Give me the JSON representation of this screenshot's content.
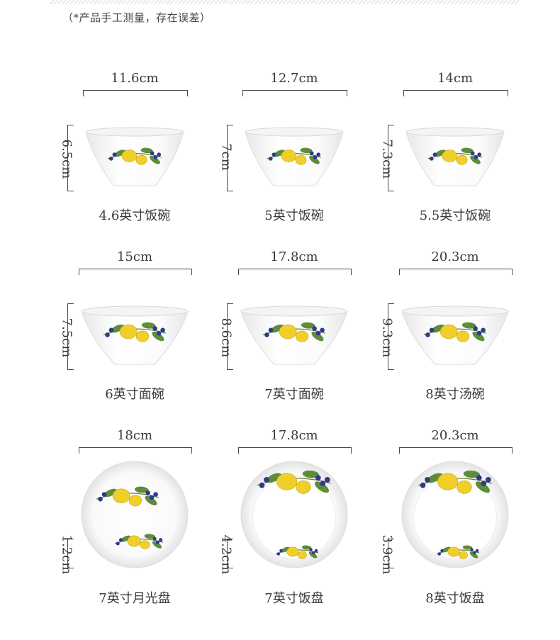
{
  "note": "（*产品手工测量，存在误差）",
  "items": [
    {
      "width": "11.6cm",
      "height": "6.5cm",
      "name": "4.6英寸饭碗",
      "kind": "bowl"
    },
    {
      "width": "12.7cm",
      "height": "7cm",
      "name": "5英寸饭碗",
      "kind": "bowl"
    },
    {
      "width": "14cm",
      "height": "7.3cm",
      "name": "5.5英寸饭碗",
      "kind": "bowl"
    },
    {
      "width": "15cm",
      "height": "7.5cm",
      "name": "6英寸面碗",
      "kind": "wide-bowl"
    },
    {
      "width": "17.8cm",
      "height": "8.6cm",
      "name": "7英寸面碗",
      "kind": "wide-bowl"
    },
    {
      "width": "20.3cm",
      "height": "9.3cm",
      "name": "8英寸汤碗",
      "kind": "wide-bowl"
    },
    {
      "width": "18cm",
      "height": "1.2cm",
      "name": "7英寸月光盘",
      "kind": "flat-plate"
    },
    {
      "width": "17.8cm",
      "height": "4.2cm",
      "name": "7英寸饭盘",
      "kind": "deep-plate"
    },
    {
      "width": "20.3cm",
      "height": "3.9cm",
      "name": "8英寸饭盘",
      "kind": "deep-plate"
    }
  ],
  "colors": {
    "line": "#3d4f4a",
    "lemon": "#f1cf2a",
    "leaf": "#5f8c3a",
    "berry": "#2f3a8f"
  }
}
